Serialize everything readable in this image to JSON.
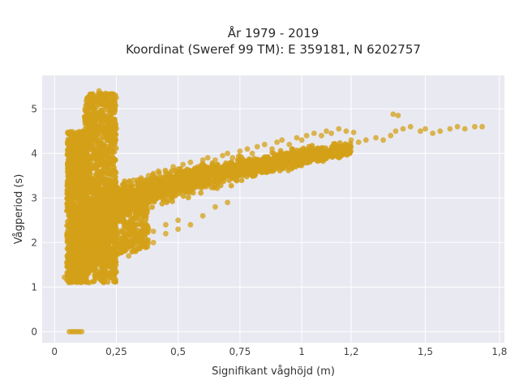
{
  "chart_data": {
    "type": "scatter",
    "title_line1": "År 1979 - 2019",
    "title_line2": "Koordinat (Sweref 99 TM): E 359181, N 6202757",
    "xlabel": "Signifikant våghöjd (m)",
    "ylabel": "Vågperiod (s)",
    "xlim": [
      -0.05,
      1.82
    ],
    "ylim": [
      -0.25,
      5.75
    ],
    "x_ticks": [
      0,
      0.25,
      0.5,
      0.75,
      1,
      1.2,
      1.5,
      1.8
    ],
    "x_tick_labels": [
      "0",
      "0,25",
      "0,5",
      "0,75",
      "1",
      "1,2",
      "1,5",
      "1,8"
    ],
    "y_ticks": [
      0,
      1,
      2,
      3,
      4,
      5
    ],
    "y_tick_labels": [
      "0",
      "1",
      "2",
      "3",
      "4",
      "5"
    ],
    "grid": true,
    "legend": "none",
    "marker_color": "#d4a017",
    "plot_background": "#e9e9f1",
    "series": [
      {
        "x": [
          0.06,
          0.07,
          0.08,
          0.09,
          0.1,
          0.11,
          0.04,
          0.05,
          0.06,
          0.07,
          0.09,
          0.12,
          0.14,
          0.16,
          0.18,
          0.2,
          0.22,
          0.24,
          0.23,
          0.21,
          0.18,
          0.15,
          0.13,
          0.12,
          0.14,
          0.17,
          0.2,
          0.23,
          0.25,
          0.26,
          0.24,
          0.22,
          0.28,
          0.3,
          0.32,
          0.35,
          0.38,
          0.4,
          0.42,
          0.45,
          0.48,
          0.5,
          0.52,
          0.55,
          0.58,
          0.6,
          0.62,
          0.65,
          0.68,
          0.7,
          0.72,
          0.75,
          0.78,
          0.8,
          0.82,
          0.85,
          0.88,
          0.9,
          0.92,
          0.95,
          0.98,
          1.0,
          1.02,
          1.05,
          1.08,
          1.1,
          1.12,
          1.15,
          1.18,
          1.2,
          1.23,
          1.26,
          1.3,
          1.33,
          1.36,
          1.38,
          1.41,
          1.44,
          1.48,
          1.5,
          1.53,
          1.56,
          1.6,
          1.63,
          1.66,
          1.7,
          1.73,
          0.3,
          0.35,
          0.4,
          0.45,
          0.5,
          0.55,
          0.6,
          0.65,
          0.7,
          0.4,
          0.45,
          0.5,
          0.35,
          0.3,
          1.21,
          1.37,
          1.39,
          0.25,
          0.22
        ],
        "y": [
          0,
          0,
          0,
          0,
          0,
          0,
          1.22,
          1.55,
          2.2,
          3.0,
          3.6,
          4.2,
          4.6,
          5.0,
          5.4,
          5.3,
          4.9,
          4.4,
          4.0,
          3.5,
          3.0,
          2.6,
          2.0,
          1.3,
          1.1,
          1.2,
          1.5,
          1.8,
          2.3,
          2.8,
          3.1,
          3.4,
          3.2,
          3.35,
          3.4,
          3.45,
          3.5,
          3.55,
          3.6,
          3.55,
          3.7,
          3.65,
          3.75,
          3.8,
          3.7,
          3.85,
          3.9,
          3.85,
          3.95,
          4.0,
          3.9,
          4.05,
          4.1,
          4.0,
          4.15,
          4.2,
          4.1,
          4.25,
          4.3,
          4.2,
          4.35,
          4.3,
          4.4,
          4.45,
          4.4,
          4.5,
          4.45,
          4.55,
          4.5,
          4.3,
          4.25,
          4.3,
          4.35,
          4.3,
          4.4,
          4.5,
          4.55,
          4.6,
          4.5,
          4.55,
          4.45,
          4.5,
          4.55,
          4.6,
          4.55,
          4.6,
          4.6,
          1.7,
          1.9,
          2.0,
          2.2,
          2.3,
          2.4,
          2.6,
          2.8,
          2.9,
          2.25,
          2.4,
          2.5,
          2.1,
          2.0,
          4.47,
          4.88,
          4.85,
          5.25,
          5.3
        ]
      }
    ]
  }
}
